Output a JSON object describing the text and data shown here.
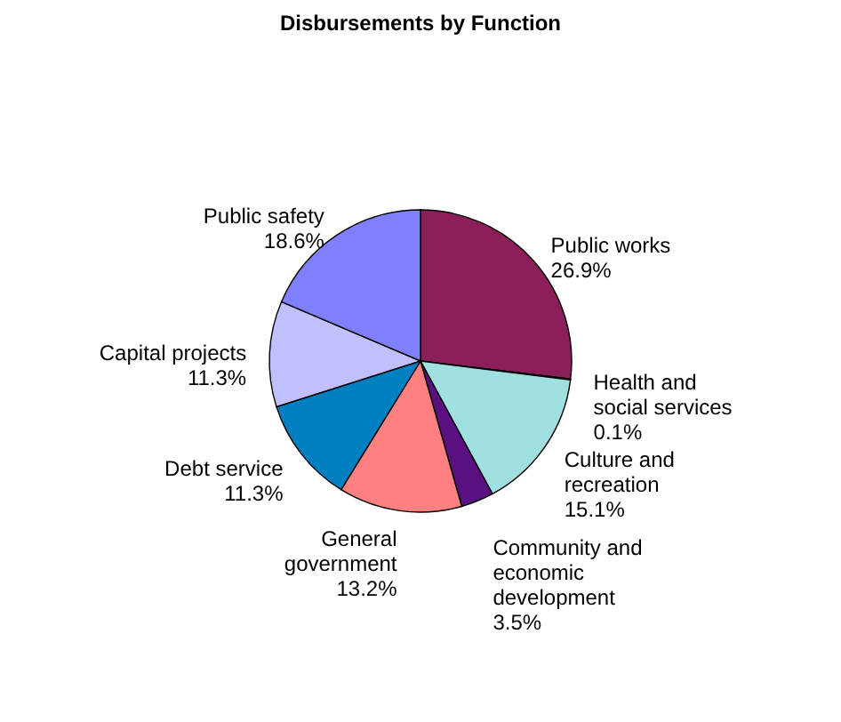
{
  "chart_data": {
    "type": "pie",
    "title": "Disbursements  by Function",
    "categories": [
      "Public works",
      "Health and social services",
      "Culture and recreation",
      "Community and economic development",
      "General government",
      "Debt service",
      "Capital projects",
      "Public safety"
    ],
    "values": [
      26.9,
      0.1,
      15.1,
      3.5,
      13.2,
      11.3,
      11.3,
      18.6
    ],
    "value_labels": [
      "26.9%",
      "0.1%",
      "15.1%",
      "3.5%",
      "13.2%",
      "11.3%",
      "11.3%",
      "18.6%"
    ],
    "colors": [
      "#8b1f5a",
      "#2a0a40",
      "#a0e0e0",
      "#5a1080",
      "#ff8080",
      "#0080c0",
      "#c0c0ff",
      "#8080ff"
    ]
  }
}
